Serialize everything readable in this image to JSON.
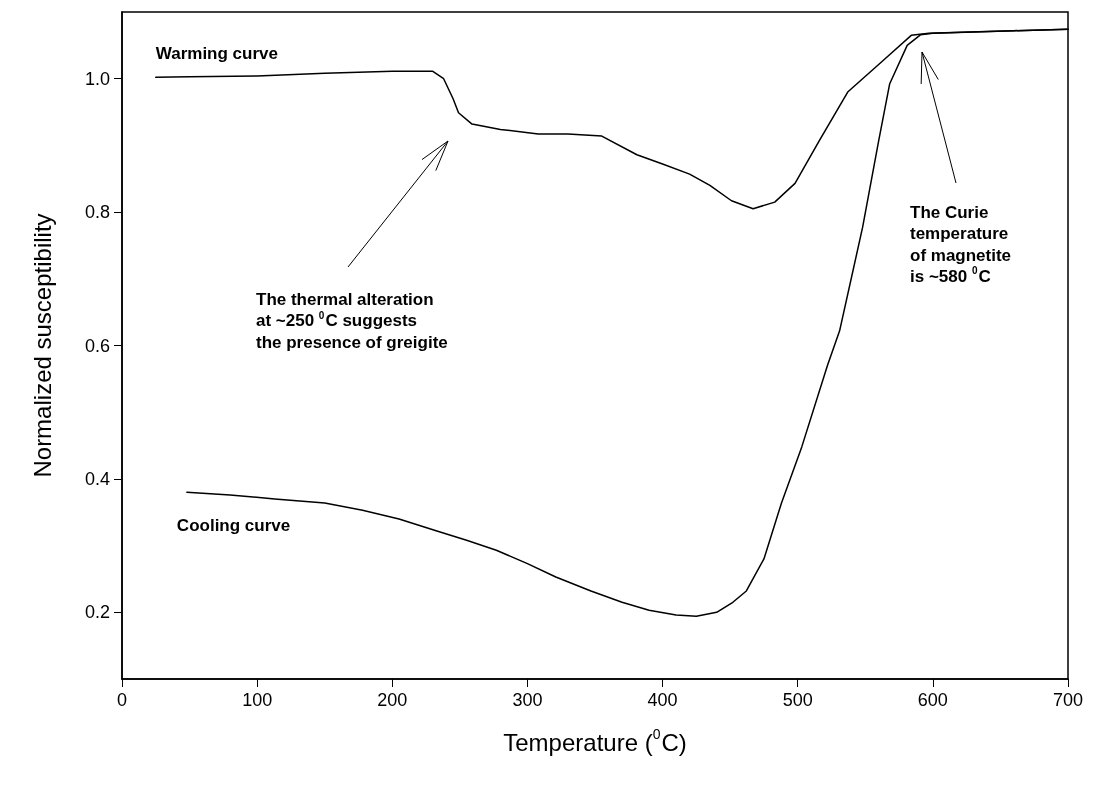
{
  "chart_data": {
    "type": "line",
    "xlabel": "Temperature ($^{0}$C)",
    "ylabel": "Normalized susceptibility",
    "xlim": [
      0,
      700
    ],
    "xticks": [
      0,
      100,
      200,
      300,
      400,
      500,
      600,
      700
    ],
    "ylim": [
      0.1,
      1.1
    ],
    "yticks": [
      0.2,
      0.4,
      0.6,
      0.8,
      {
        "value": 1,
        "label": "1.0"
      }
    ],
    "grid": false,
    "legend": false,
    "marker": "none",
    "line_style": "solid",
    "series": [
      {
        "name": "Warming curve",
        "color": "#000000",
        "x": [
          25,
          50,
          100,
          150,
          200,
          230,
          238,
          245,
          249,
          259,
          280,
          308,
          330,
          355,
          381,
          400,
          420,
          435,
          451,
          467,
          483,
          498,
          516,
          537,
          563,
          584,
          597,
          627,
          660,
          700
        ],
        "values": [
          1.002,
          1.003,
          1.004,
          1.008,
          1.011,
          1.011,
          1.0,
          0.97,
          0.949,
          0.932,
          0.924,
          0.917,
          0.917,
          0.914,
          0.886,
          0.872,
          0.857,
          0.84,
          0.817,
          0.805,
          0.815,
          0.843,
          0.907,
          0.98,
          1.027,
          1.065,
          1.068,
          1.07,
          1.072,
          1.074
        ]
      },
      {
        "name": "Cooling curve",
        "color": "#000000",
        "x": [
          48,
          80,
          113,
          150,
          178,
          205,
          233,
          255,
          277,
          300,
          321,
          347,
          370,
          390,
          410,
          425,
          440,
          452,
          462,
          475,
          488,
          503,
          522,
          531,
          548,
          560,
          568,
          581,
          591,
          600,
          630,
          660,
          700
        ],
        "values": [
          0.38,
          0.376,
          0.37,
          0.364,
          0.353,
          0.34,
          0.322,
          0.308,
          0.293,
          0.273,
          0.253,
          0.232,
          0.215,
          0.203,
          0.196,
          0.194,
          0.2,
          0.215,
          0.232,
          0.28,
          0.364,
          0.448,
          0.57,
          0.622,
          0.777,
          0.908,
          0.992,
          1.05,
          1.066,
          1.068,
          1.07,
          1.072,
          1.074
        ]
      }
    ],
    "annotations": [
      "The thermal alteration\nat ~250 $^{0}$C suggests\nthe presence of greigite",
      "The Curie\ntemperature\nof magnetite\nis ~580 $^{0}$C"
    ]
  }
}
